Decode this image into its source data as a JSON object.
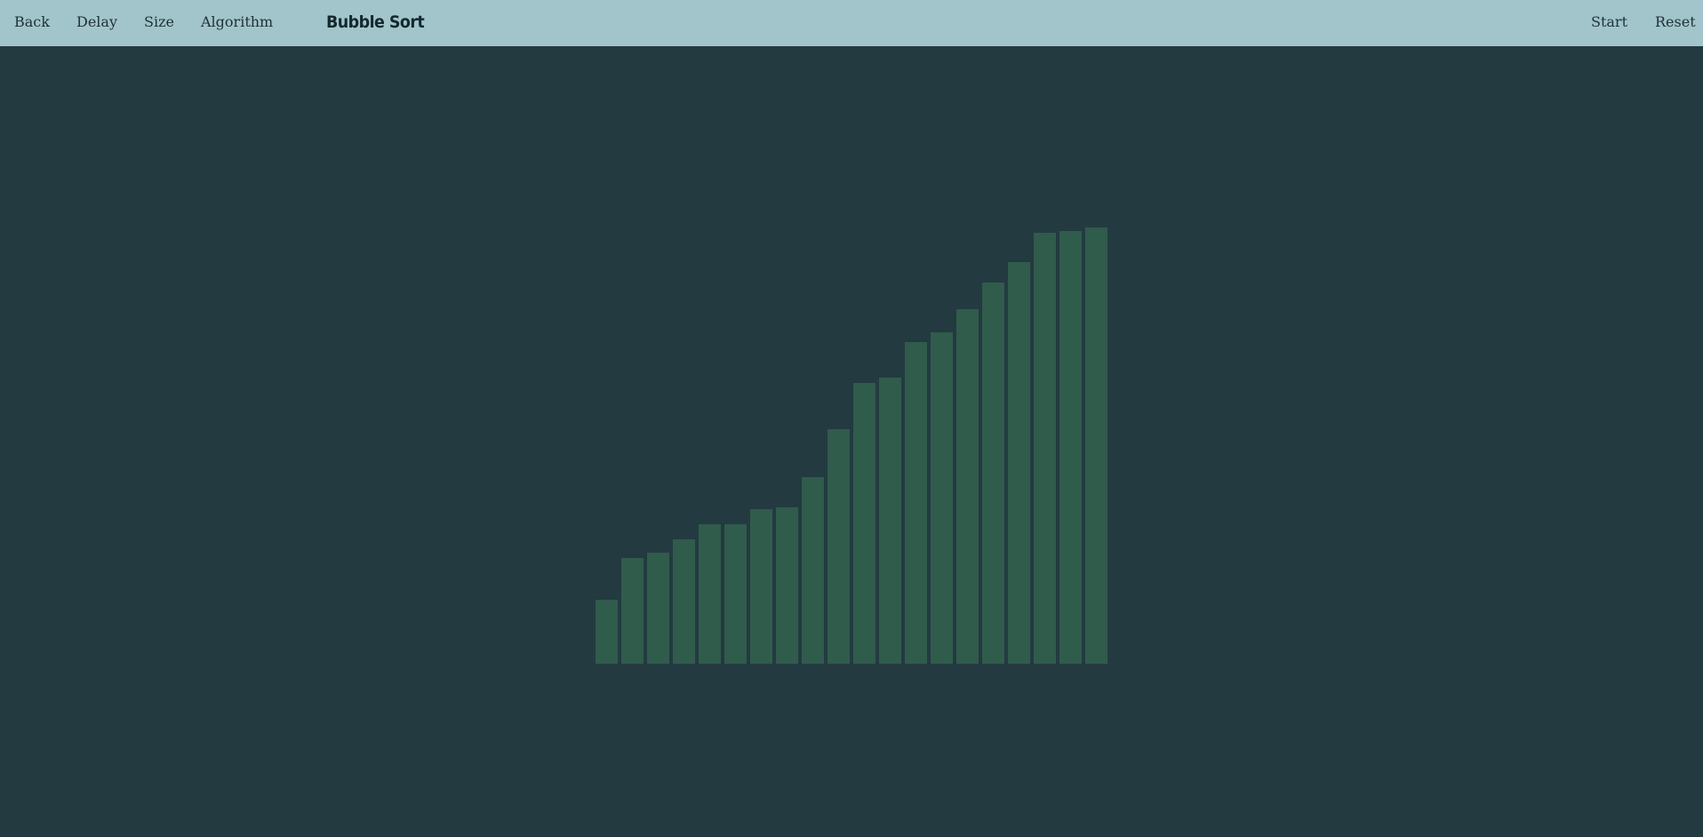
{
  "navbar": {
    "back_label": "Back",
    "delay_label": "Delay",
    "size_label": "Size",
    "algorithm_label": "Algorithm",
    "title": "Bubble Sort",
    "start_label": "Start",
    "reset_label": "Reset"
  },
  "colors": {
    "background": "#233a41",
    "navbar": "#a1c5ca",
    "bar": "#305c4b",
    "nav_text": "#1f3038"
  },
  "chart_data": {
    "type": "bar",
    "values": [
      72,
      119,
      125,
      140,
      157,
      157,
      174,
      176,
      210,
      264,
      316,
      322,
      362,
      373,
      399,
      429,
      452,
      485,
      487,
      491
    ],
    "sorted": "ascending"
  }
}
